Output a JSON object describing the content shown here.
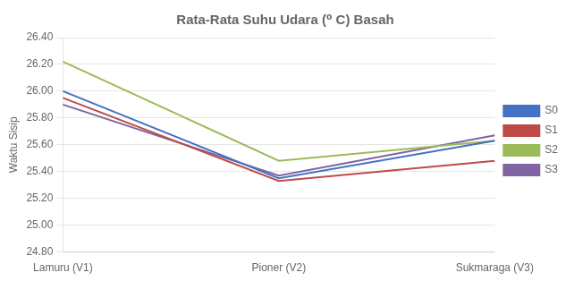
{
  "chart_data": {
    "type": "line",
    "title": "Rata-Rata Suhu Udara (⁰ C) Basah",
    "ylabel": "Waktu Sisip",
    "categories": [
      "Lamuru (V1)",
      "Pioner (V2)",
      "Sukmaraga (V3)"
    ],
    "series": [
      {
        "name": "S0",
        "color": "#4472C4",
        "values": [
          26.0,
          25.35,
          25.63
        ]
      },
      {
        "name": "S1",
        "color": "#BE4B48",
        "values": [
          25.95,
          25.33,
          25.48
        ]
      },
      {
        "name": "S2",
        "color": "#9BBB59",
        "values": [
          26.22,
          25.48,
          25.63
        ]
      },
      {
        "name": "S3",
        "color": "#8064A2",
        "values": [
          25.9,
          25.37,
          25.67
        ]
      }
    ],
    "ylim": [
      24.8,
      26.4
    ],
    "yticks": [
      {
        "value": 24.8,
        "label": "24.80"
      },
      {
        "value": 25.0,
        "label": "25.00"
      },
      {
        "value": 25.2,
        "label": "25.20"
      },
      {
        "value": 25.4,
        "label": "25.40"
      },
      {
        "value": 25.6,
        "label": "25.60"
      },
      {
        "value": 25.8,
        "label": "25.80"
      },
      {
        "value": 26.0,
        "label": "26.00"
      },
      {
        "value": 26.2,
        "label": "26.20"
      },
      {
        "value": 26.4,
        "label": "26.40"
      }
    ],
    "grid": true,
    "legend": "right"
  }
}
